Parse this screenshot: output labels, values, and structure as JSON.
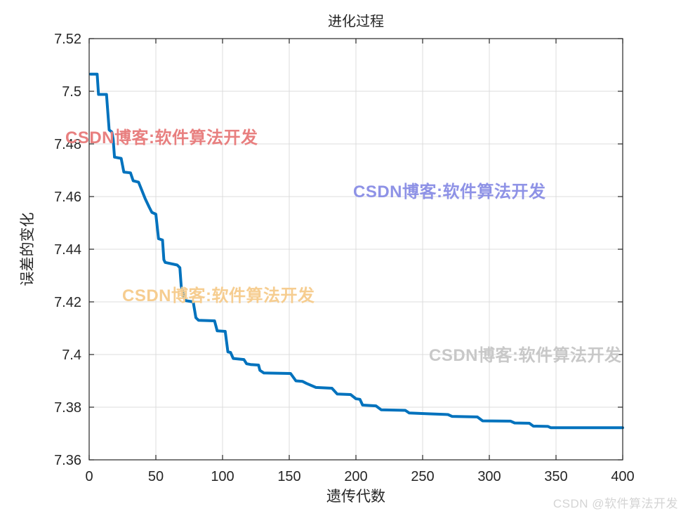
{
  "figure": {
    "title": "进化过程",
    "x_axis": {
      "label": "遗传代数"
    },
    "y_axis": {
      "label": "误差的变化"
    }
  },
  "watermarks": {
    "red": {
      "text": "CSDN博客:软件算法开发",
      "color": "#e87f7f"
    },
    "blue": {
      "text": "CSDN博客:软件算法开发",
      "color": "#8e92e6"
    },
    "yellow": {
      "text": "CSDN博客:软件算法开发",
      "color": "#f6cd90"
    },
    "gray": {
      "text": "CSDN博客:软件算法开发",
      "color": "#c8c8c8"
    },
    "corner": {
      "text": "CSDN @软件算法开发",
      "color": "#d4d4d4"
    }
  },
  "chart_data": {
    "type": "line",
    "title": "进化过程",
    "xlabel": "遗传代数",
    "ylabel": "误差的变化",
    "xlim": [
      0,
      400
    ],
    "ylim": [
      7.36,
      7.52
    ],
    "xticks": [
      0,
      50,
      100,
      150,
      200,
      250,
      300,
      350,
      400
    ],
    "xtick_labels": [
      "0",
      "50",
      "100",
      "150",
      "200",
      "250",
      "300",
      "350",
      "400"
    ],
    "yticks": [
      7.36,
      7.38,
      7.4,
      7.42,
      7.44,
      7.46,
      7.48,
      7.5,
      7.52
    ],
    "ytick_labels": [
      "7.36",
      "7.38",
      "7.4",
      "7.42",
      "7.44",
      "7.46",
      "7.48",
      "7.5",
      "7.52"
    ],
    "grid": true,
    "legend": "none",
    "line_color": "#0072BD",
    "grid_color": "#dcdcdc",
    "axis_color": "#262626",
    "series": [
      {
        "name": "误差的变化",
        "x": [
          1,
          6,
          7,
          13,
          14,
          15,
          17,
          18,
          19,
          24,
          26,
          31,
          33,
          37,
          39,
          42,
          45,
          47,
          50,
          52,
          55,
          56,
          57,
          66,
          68,
          69,
          72,
          78,
          80,
          82,
          94,
          96,
          102,
          104,
          106,
          108,
          116,
          118,
          121,
          127,
          128,
          131,
          151,
          155,
          160,
          163,
          170,
          182,
          186,
          196,
          200,
          203,
          205,
          215,
          219,
          237,
          240,
          254,
          269,
          272,
          291,
          295,
          316,
          319,
          330,
          333,
          344,
          346,
          400
        ],
        "y": [
          7.5065,
          7.5065,
          7.4988,
          7.4988,
          7.492,
          7.4853,
          7.4845,
          7.4818,
          7.475,
          7.4745,
          7.4693,
          7.469,
          7.466,
          7.4655,
          7.463,
          7.4592,
          7.456,
          7.454,
          7.4533,
          7.444,
          7.4435,
          7.436,
          7.435,
          7.434,
          7.433,
          7.426,
          7.4205,
          7.42,
          7.414,
          7.413,
          7.4128,
          7.409,
          7.4088,
          7.401,
          7.4008,
          7.3985,
          7.3981,
          7.3965,
          7.3962,
          7.396,
          7.394,
          7.393,
          7.3928,
          7.39,
          7.3898,
          7.389,
          7.3875,
          7.3872,
          7.385,
          7.3848,
          7.3832,
          7.383,
          7.3808,
          7.3805,
          7.379,
          7.3788,
          7.3778,
          7.3775,
          7.3772,
          7.3765,
          7.3763,
          7.3748,
          7.3747,
          7.374,
          7.3739,
          7.3728,
          7.3727,
          7.3722,
          7.3722
        ]
      }
    ]
  }
}
